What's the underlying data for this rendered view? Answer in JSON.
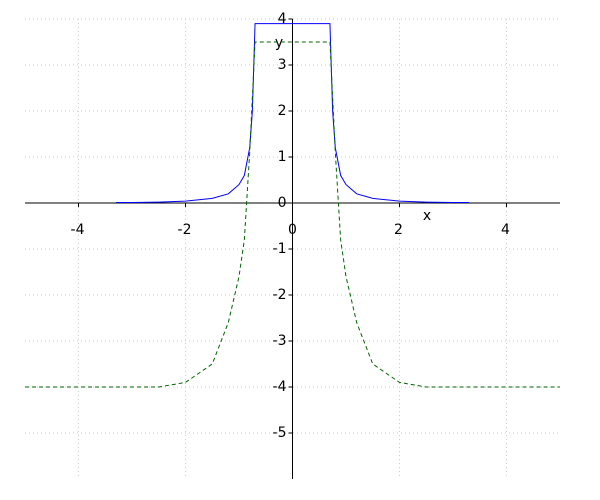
{
  "chart_data": {
    "type": "line",
    "x_label": "x",
    "y_label": "y",
    "x": [
      -5,
      -4,
      -3.3,
      -3,
      -2.5,
      -2,
      -1.5,
      -1.2,
      -1,
      -0.9,
      -0.8,
      -0.75,
      -0.7,
      0.7,
      0.75,
      0.8,
      0.9,
      1,
      1.2,
      1.5,
      2,
      2.5,
      3,
      3.3,
      4,
      5
    ],
    "series": [
      {
        "color": "#0000ff",
        "dash": false,
        "values": [
          null,
          null,
          0.01,
          0.01,
          0.02,
          0.04,
          0.1,
          0.2,
          0.4,
          0.6,
          1.2,
          2.0,
          3.9,
          3.9,
          2.0,
          1.2,
          0.6,
          0.4,
          0.2,
          0.1,
          0.04,
          0.02,
          0.01,
          0.01,
          null,
          null
        ]
      },
      {
        "color": "#006400",
        "dash": true,
        "values": [
          -4,
          -4,
          -4,
          -4,
          -4,
          -3.9,
          -3.5,
          -2.6,
          -1.6,
          -0.8,
          1.1,
          2.3,
          3.5,
          3.5,
          2.3,
          1.1,
          -0.8,
          -1.6,
          -2.6,
          -3.5,
          -3.9,
          -4,
          -4,
          -4,
          -4,
          -4
        ]
      }
    ],
    "xlim": [
      -5,
      5
    ],
    "ylim": [
      -6,
      4
    ],
    "xticks": [
      -4,
      -2,
      0,
      2,
      4
    ],
    "yticks": [
      -5,
      -4,
      -3,
      -2,
      -1,
      0,
      1,
      2,
      3,
      4
    ],
    "grid": true
  }
}
